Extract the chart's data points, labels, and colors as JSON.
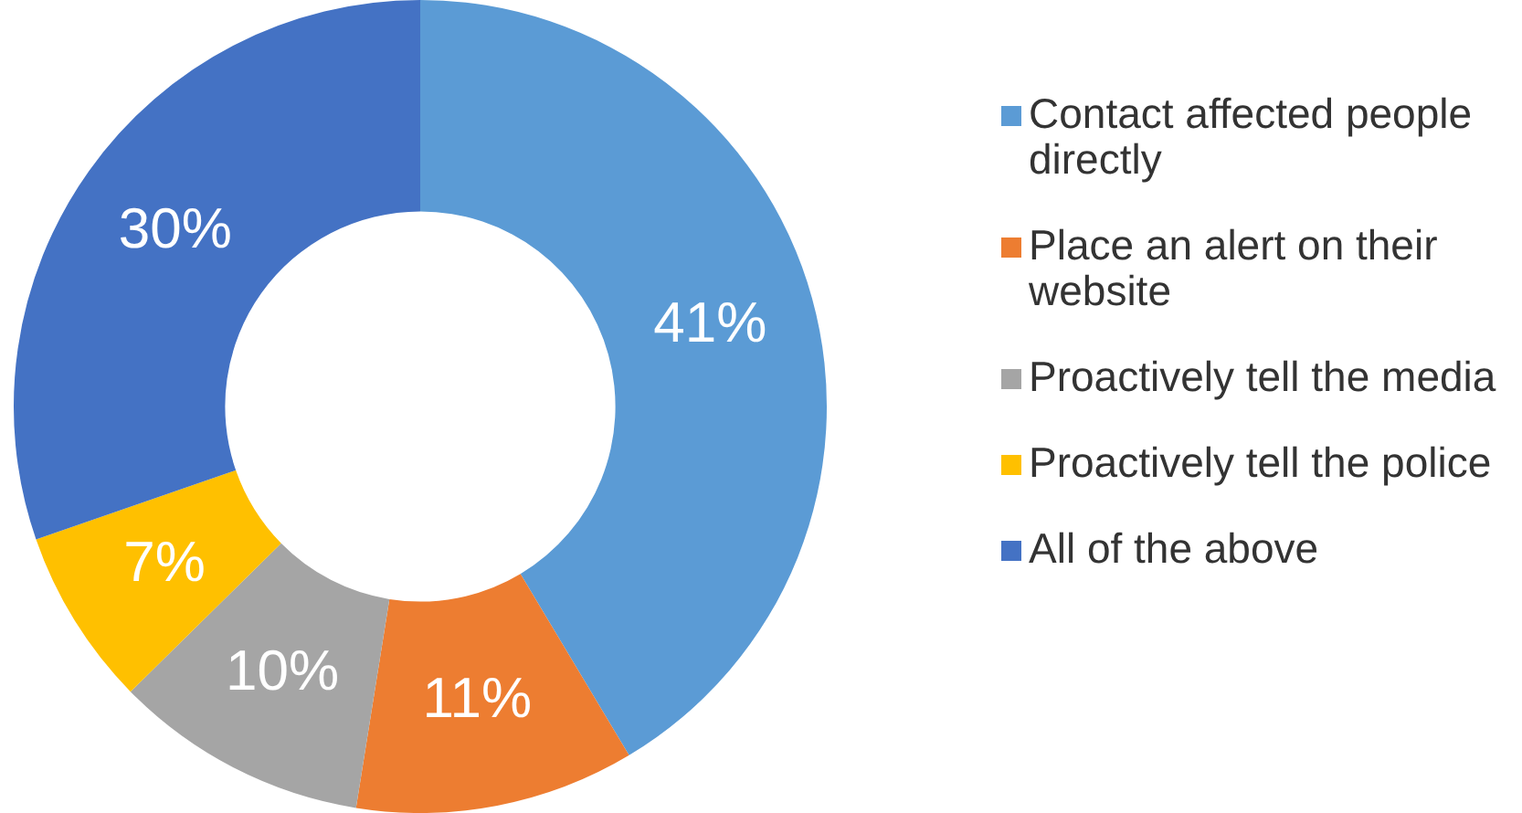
{
  "chart_data": {
    "type": "donut",
    "categories": [
      "Contact affected people directly",
      "Place an alert on their website",
      "Proactively tell the media",
      "Proactively tell the police",
      "All of the above"
    ],
    "values": [
      41,
      11,
      10,
      7,
      30
    ],
    "colors": [
      "#5b9bd5",
      "#ed7d31",
      "#a5a5a5",
      "#ffc000",
      "#4472c4"
    ],
    "value_labels": [
      "41%",
      "11%",
      "10%",
      "7%",
      "30%"
    ],
    "legend": "right"
  }
}
